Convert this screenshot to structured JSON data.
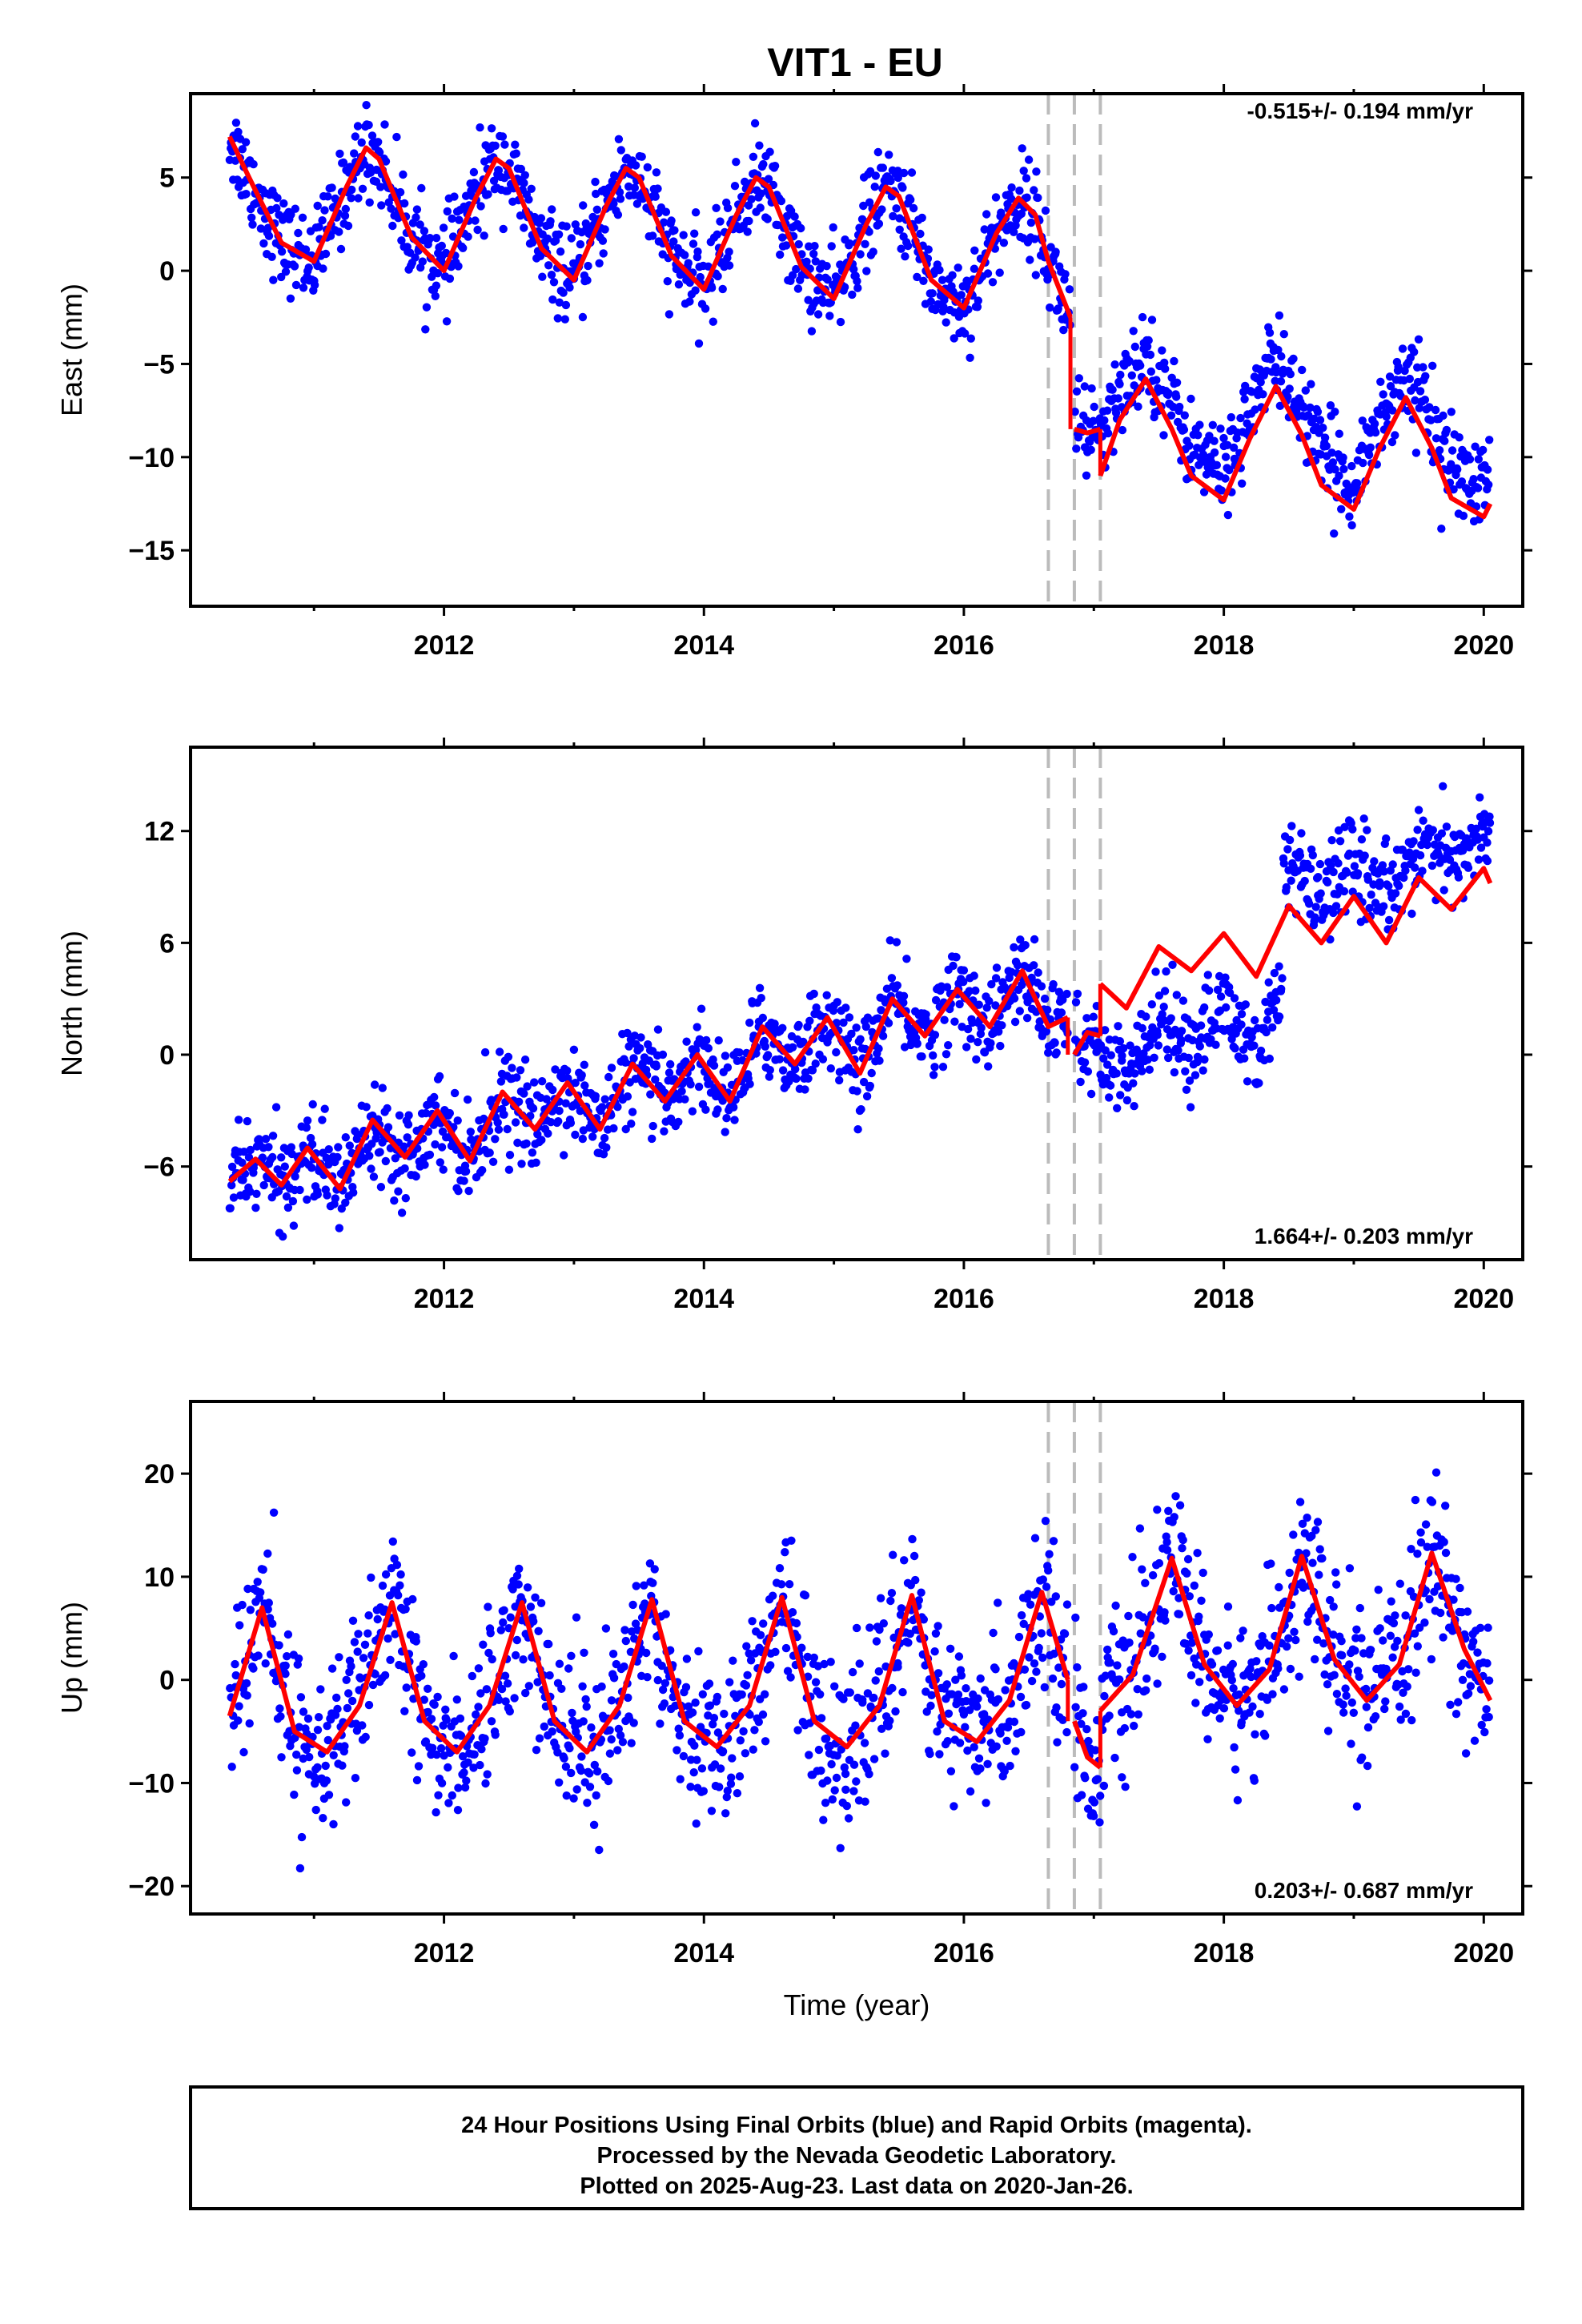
{
  "title": "VIT1 - EU",
  "xlabel": "Time (year)",
  "footer": {
    "line1": "24 Hour Positions Using Final Orbits (blue) and Rapid Orbits (magenta).",
    "line2": "Processed by the Nevada Geodetic Laboratory.",
    "line3": "Plotted on 2025-Aug-23. Last data on 2020-Jan-26."
  },
  "colors": {
    "points": "#0000ff",
    "model": "#ff0000",
    "steps": "#bbbbbb",
    "axes": "#000000"
  },
  "chart_data": [
    {
      "type": "scatter",
      "component": "East",
      "ylabel": "East (mm)",
      "rate": "-0.515+/- 0.194 mm/yr",
      "xlim": [
        2010.05,
        2020.3
      ],
      "ylim": [
        -18,
        9.5
      ],
      "xticks": [
        2012,
        2014,
        2016,
        2018,
        2020
      ],
      "yticks": [
        5,
        0,
        -5,
        -10,
        -15
      ],
      "grid": false,
      "step_epochs": [
        2016.65,
        2016.85,
        2017.05
      ],
      "series": [
        {
          "values_note": "",
          "segments": [
            {
              "t": [
                2010.35,
                2010.5,
                2010.75,
                2011.0,
                2011.25,
                2011.4,
                2011.5,
                2011.75,
                2012.0,
                2012.25,
                2012.4,
                2012.5,
                2012.75,
                2013.0,
                2013.25,
                2013.4,
                2013.5,
                2013.75,
                2014.0,
                2014.25,
                2014.4,
                2014.5,
                2014.75,
                2015.0,
                2015.25,
                2015.4,
                2015.5,
                2015.75,
                2016.0,
                2016.25,
                2016.42,
                2016.55,
                2016.65,
                2016.82
              ],
              "y": [
                7.2,
                5.0,
                1.5,
                0.5,
                4.5,
                6.6,
                6.0,
                1.8,
                0.0,
                4.0,
                6.0,
                5.5,
                1.2,
                -0.5,
                3.5,
                5.5,
                5.0,
                0.8,
                -1.0,
                3.0,
                5.0,
                4.5,
                0.2,
                -1.5,
                2.5,
                4.5,
                4.0,
                -0.5,
                -2.0,
                2.0,
                3.9,
                3.0,
                0.5,
                -2.5
              ]
            },
            {
              "t": [
                2016.85,
                2016.95,
                2017.05
              ],
              "y": [
                -8.5,
                -8.7,
                -8.5
              ]
            },
            {
              "t": [
                2017.05,
                2017.2,
                2017.4,
                2017.6,
                2017.75,
                2018.0,
                2018.2,
                2018.4,
                2018.6,
                2018.75,
                2019.0,
                2019.2,
                2019.4,
                2019.6,
                2019.75,
                2020.0,
                2020.05
              ],
              "y": [
                -11.0,
                -8.0,
                -5.8,
                -8.5,
                -11.0,
                -12.3,
                -9.0,
                -6.2,
                -8.8,
                -11.5,
                -12.8,
                -9.5,
                -6.8,
                -9.5,
                -12.2,
                -13.2,
                -12.5
              ]
            }
          ]
        }
      ]
    },
    {
      "type": "scatter",
      "component": "North",
      "ylabel": "North (mm)",
      "rate": "1.664+/- 0.203 mm/yr",
      "xlim": [
        2010.05,
        2020.3
      ],
      "ylim": [
        -11,
        16.5
      ],
      "xticks": [
        2012,
        2014,
        2016,
        2018,
        2020
      ],
      "yticks": [
        12,
        6,
        0,
        -6
      ],
      "grid": false,
      "step_epochs": [
        2016.65,
        2016.85,
        2017.05
      ],
      "series": [
        {
          "values_note": "",
          "segments": [
            {
              "t": [
                2010.35,
                2010.55,
                2010.75,
                2010.95,
                2011.2,
                2011.45,
                2011.7,
                2011.95,
                2012.2,
                2012.45,
                2012.7,
                2012.95,
                2013.2,
                2013.45,
                2013.7,
                2013.95,
                2014.2,
                2014.45,
                2014.7,
                2014.95,
                2015.2,
                2015.45,
                2015.7,
                2015.95,
                2016.2,
                2016.45,
                2016.65,
                2016.8
              ],
              "y": [
                -6.8,
                -5.6,
                -7.0,
                -5.0,
                -7.2,
                -3.5,
                -5.5,
                -3.0,
                -5.7,
                -2.0,
                -4.0,
                -1.5,
                -4.0,
                -0.5,
                -2.5,
                0.0,
                -2.5,
                1.5,
                -0.5,
                2.0,
                -1.0,
                3.0,
                1.0,
                3.5,
                1.5,
                4.5,
                1.5,
                2.0
              ]
            },
            {
              "t": [
                2016.85,
                2016.95,
                2017.05
              ],
              "y": [
                0.0,
                1.2,
                1.0
              ]
            },
            {
              "t": [
                2017.05,
                2017.25,
                2017.5,
                2017.75,
                2018.0,
                2018.25,
                2018.5,
                2018.75,
                2019.0,
                2019.25,
                2019.5,
                2019.75,
                2020.0,
                2020.05
              ],
              "y": [
                3.8,
                2.5,
                5.8,
                4.5,
                6.5,
                4.2,
                8.0,
                6.0,
                8.5,
                6.0,
                9.5,
                7.8,
                10.0,
                9.2
              ]
            }
          ]
        }
      ]
    },
    {
      "type": "scatter",
      "component": "Up",
      "ylabel": "Up (mm)",
      "rate": "0.203+/- 0.687 mm/yr",
      "xlim": [
        2010.05,
        2020.3
      ],
      "ylim": [
        -22.7,
        27
      ],
      "xticks": [
        2012,
        2014,
        2016,
        2018,
        2020
      ],
      "yticks": [
        20,
        10,
        0,
        -10,
        -20
      ],
      "grid": false,
      "step_epochs": [
        2016.65,
        2016.85,
        2017.05
      ],
      "series": [
        {
          "values_note": "",
          "segments": [
            {
              "t": [
                2010.35,
                2010.6,
                2010.85,
                2011.1,
                2011.35,
                2011.6,
                2011.85,
                2012.1,
                2012.35,
                2012.6,
                2012.85,
                2013.1,
                2013.35,
                2013.6,
                2013.85,
                2014.1,
                2014.35,
                2014.6,
                2014.85,
                2015.1,
                2015.35,
                2015.6,
                2015.85,
                2016.1,
                2016.35,
                2016.6,
                2016.8
              ],
              "y": [
                -3.5,
                7.0,
                -5.0,
                -7.0,
                -2.5,
                7.5,
                -4.0,
                -7.0,
                -2.5,
                7.5,
                -4.0,
                -7.0,
                -2.5,
                7.8,
                -4.0,
                -6.5,
                -2.5,
                8.0,
                -4.0,
                -6.5,
                -2.5,
                8.2,
                -4.0,
                -6.0,
                -2.0,
                8.5,
                0.0
              ]
            },
            {
              "t": [
                2016.85,
                2016.95,
                2017.05
              ],
              "y": [
                -4.0,
                -7.5,
                -8.5
              ]
            },
            {
              "t": [
                2017.05,
                2017.3,
                2017.6,
                2017.85,
                2018.1,
                2018.35,
                2018.6,
                2018.85,
                2019.1,
                2019.35,
                2019.6,
                2019.85,
                2020.05
              ],
              "y": [
                -3.0,
                0.5,
                11.8,
                1.5,
                -2.5,
                1.0,
                12.0,
                2.0,
                -2.0,
                1.5,
                12.3,
                3.0,
                -2.0
              ]
            }
          ]
        }
      ]
    }
  ]
}
